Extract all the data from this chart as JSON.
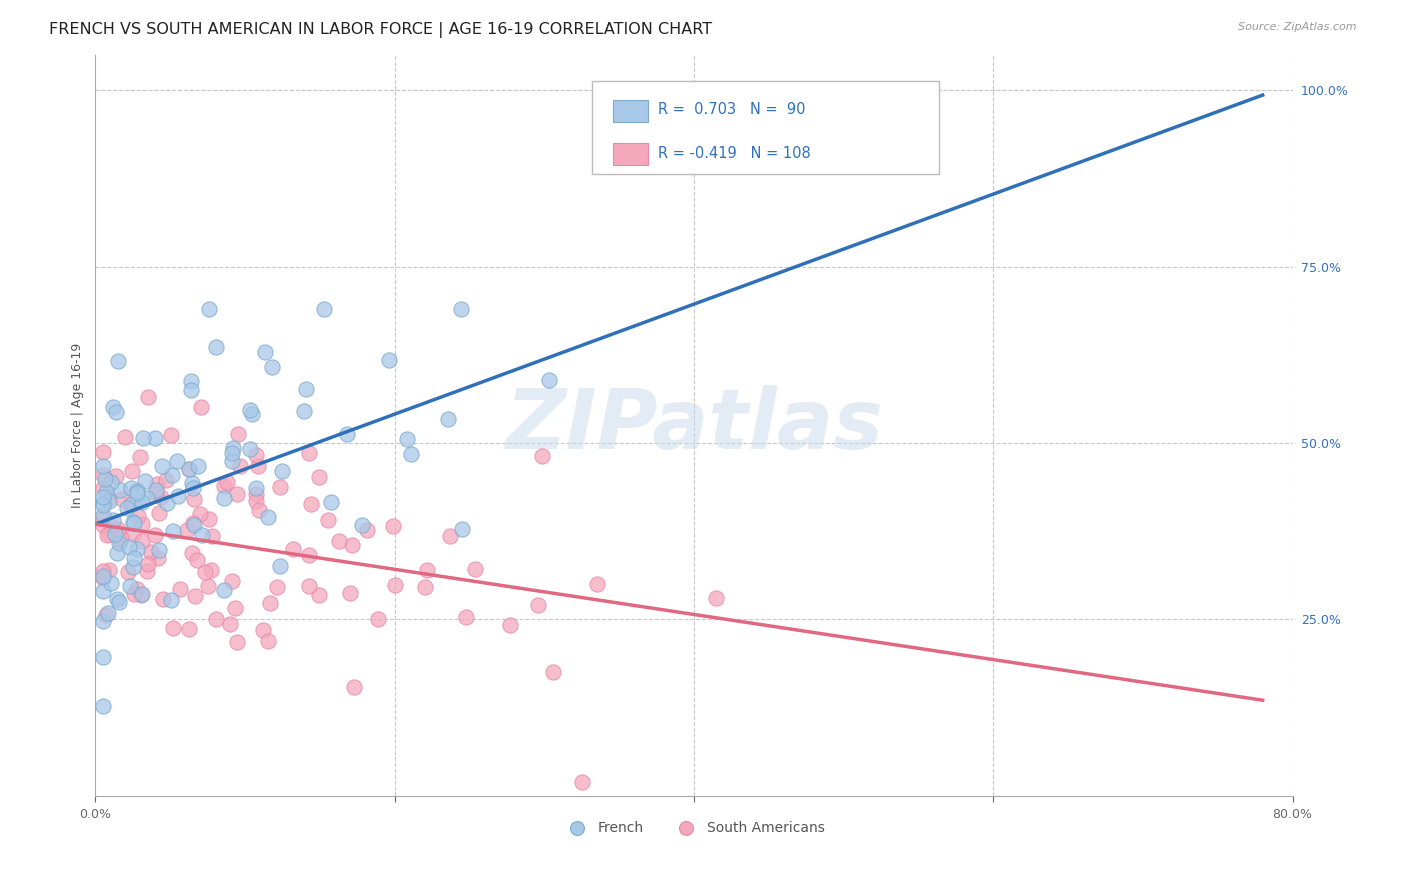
{
  "title": "FRENCH VS SOUTH AMERICAN IN LABOR FORCE | AGE 16-19 CORRELATION CHART",
  "source": "Source: ZipAtlas.com",
  "ylabel": "In Labor Force | Age 16-19",
  "xlim": [
    0.0,
    0.8
  ],
  "ylim": [
    0.0,
    1.05
  ],
  "watermark": "ZIPatlas",
  "legend_r_french": "R =  0.703",
  "legend_n_french": "N =  90",
  "legend_r_sa": "R = -0.419",
  "legend_n_sa": "N = 108",
  "french_color": "#a8c8e8",
  "sa_color": "#f4a8bc",
  "french_edge_color": "#7aaad0",
  "sa_edge_color": "#e888a8",
  "french_line_color": "#3070b8",
  "sa_line_color": "#e06880",
  "legend_text_color": "#3070c0",
  "title_fontsize": 11.5,
  "axis_label_fontsize": 9,
  "tick_fontsize": 9,
  "background_color": "#ffffff",
  "grid_color": "#c8c8c8",
  "french_slope": 0.78,
  "french_intercept": 0.385,
  "sa_slope": -0.32,
  "sa_intercept": 0.385,
  "french_line_x0": 0.0,
  "french_line_x1": 0.78,
  "sa_line_x0": 0.0,
  "sa_line_x1": 0.78
}
